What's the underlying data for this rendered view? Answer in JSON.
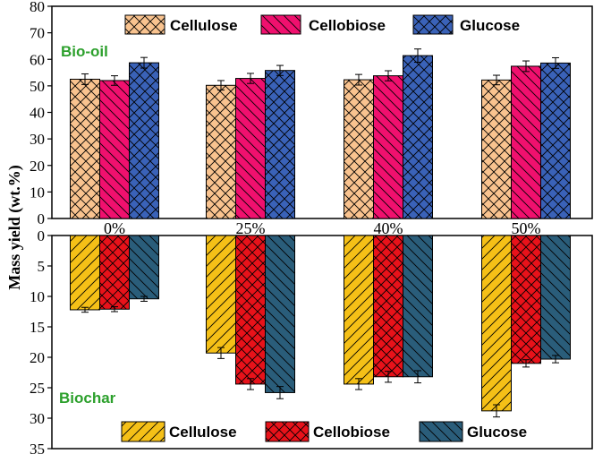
{
  "chart_data": [
    {
      "type": "bar",
      "panel": "top",
      "label": "Bio-oil",
      "label_color": "#2ca02c",
      "categories": [
        "0%",
        "25%",
        "40%",
        "50%"
      ],
      "series": [
        {
          "name": "Cellulose",
          "color": "#f9c38f",
          "pattern": "crosshatch",
          "values": [
            52.5,
            50.2,
            52.3,
            52.2
          ],
          "errors": [
            2.0,
            1.8,
            2.0,
            1.8
          ]
        },
        {
          "name": "Cellobiose",
          "color": "#f0106e",
          "pattern": "diagonal-right",
          "values": [
            52.0,
            52.8,
            53.8,
            57.4
          ],
          "errors": [
            1.8,
            1.9,
            1.9,
            2.0
          ]
        },
        {
          "name": "Glucose",
          "color": "#3a62b8",
          "pattern": "crosshatch",
          "values": [
            58.7,
            55.8,
            61.4,
            58.6
          ],
          "errors": [
            2.0,
            1.9,
            2.5,
            2.0
          ]
        }
      ],
      "ylim": [
        0,
        80
      ],
      "yticks": [
        "0",
        "10",
        "20",
        "30",
        "40",
        "50",
        "60",
        "70",
        "80"
      ]
    },
    {
      "type": "bar",
      "panel": "bottom",
      "label": "Biochar",
      "label_color": "#2ca02c",
      "categories": [
        "0%",
        "25%",
        "40%",
        "50%"
      ],
      "series": [
        {
          "name": "Cellulose",
          "color": "#f5c017",
          "pattern": "diagonal",
          "values": [
            12.2,
            19.3,
            24.4,
            28.8
          ],
          "errors": [
            0.4,
            0.9,
            0.9,
            1.0
          ]
        },
        {
          "name": "Cellobiose",
          "color": "#e8121a",
          "pattern": "crosshatch",
          "values": [
            12.1,
            24.4,
            23.2,
            21.0
          ],
          "errors": [
            0.4,
            0.9,
            0.9,
            0.6
          ]
        },
        {
          "name": "Glucose",
          "color": "#2a5d7a",
          "pattern": "diagonal-right",
          "values": [
            10.4,
            25.8,
            23.2,
            20.3
          ],
          "errors": [
            0.4,
            1.0,
            1.0,
            0.6
          ]
        }
      ],
      "ylim": [
        0,
        35
      ],
      "yticks": [
        "0",
        "5",
        "10",
        "15",
        "20",
        "25",
        "30",
        "35"
      ],
      "inverted": true
    }
  ],
  "ylabel": "Mass yield (wt.%)"
}
